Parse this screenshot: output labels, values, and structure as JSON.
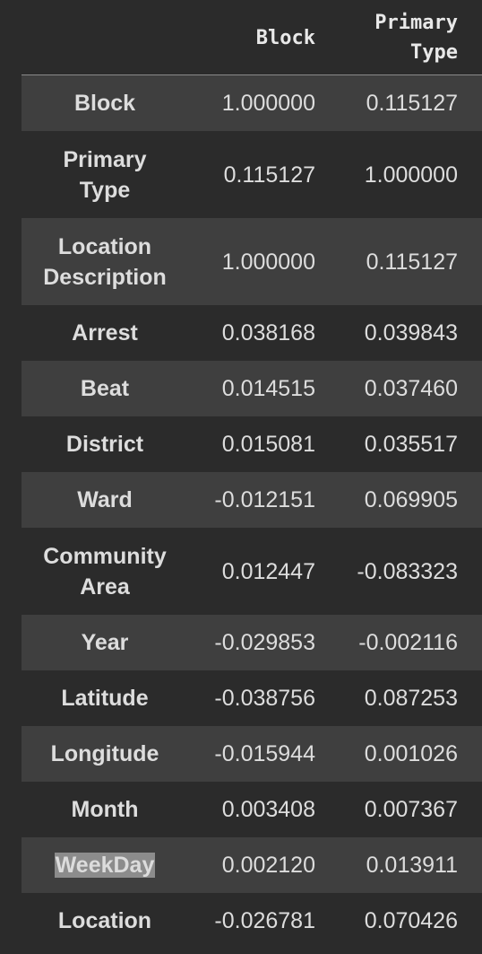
{
  "columns": [
    "Block",
    "Primary\nType"
  ],
  "rows": [
    {
      "label": "Block",
      "values": [
        "1.000000",
        "0.115127"
      ]
    },
    {
      "label": "Primary\nType",
      "values": [
        "0.115127",
        "1.000000"
      ]
    },
    {
      "label": "Location\nDescription",
      "values": [
        "1.000000",
        "0.115127"
      ]
    },
    {
      "label": "Arrest",
      "values": [
        "0.038168",
        "0.039843"
      ]
    },
    {
      "label": "Beat",
      "values": [
        "0.014515",
        "0.037460"
      ]
    },
    {
      "label": "District",
      "values": [
        "0.015081",
        "0.035517"
      ]
    },
    {
      "label": "Ward",
      "values": [
        "-0.012151",
        "0.069905"
      ]
    },
    {
      "label": "Community\nArea",
      "values": [
        "0.012447",
        "-0.083323"
      ]
    },
    {
      "label": "Year",
      "values": [
        "-0.029853",
        "-0.002116"
      ]
    },
    {
      "label": "Latitude",
      "values": [
        "-0.038756",
        "0.087253"
      ]
    },
    {
      "label": "Longitude",
      "values": [
        "-0.015944",
        "0.001026"
      ]
    },
    {
      "label": "Month",
      "values": [
        "0.003408",
        "0.007367"
      ]
    },
    {
      "label": "WeekDay",
      "values": [
        "0.002120",
        "0.013911"
      ]
    },
    {
      "label": "Location",
      "values": [
        "-0.026781",
        "0.070426"
      ]
    }
  ],
  "highlighted_row": 12
}
